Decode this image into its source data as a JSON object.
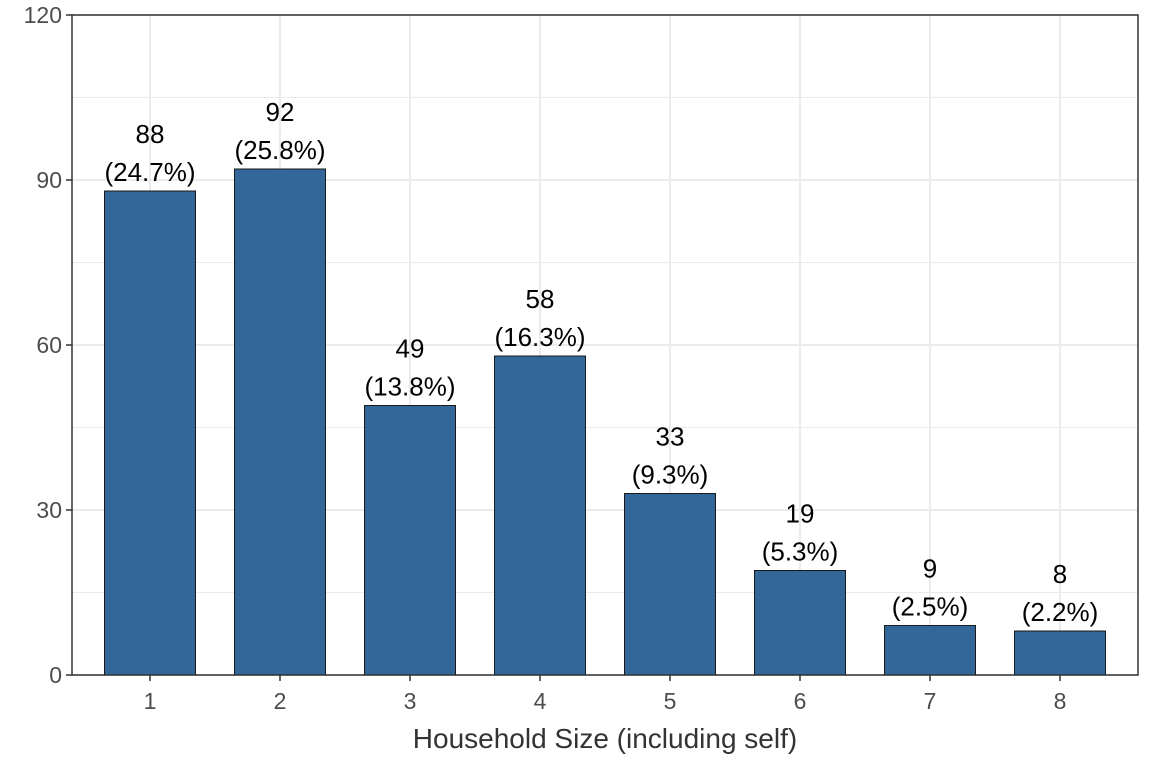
{
  "chart_data": {
    "type": "bar",
    "categories": [
      "1",
      "2",
      "3",
      "4",
      "5",
      "6",
      "7",
      "8"
    ],
    "values": [
      88,
      92,
      49,
      58,
      33,
      19,
      9,
      8
    ],
    "percent_labels": [
      "(24.7%)",
      "(25.8%)",
      "(13.8%)",
      "(16.3%)",
      "(9.3%)",
      "(5.3%)",
      "(2.5%)",
      "(2.2%)"
    ],
    "title": "",
    "xlabel": "Household Size (including self)",
    "ylabel": "",
    "ylim": [
      0,
      120
    ],
    "yticks": [
      "0",
      "30",
      "60",
      "90",
      "120"
    ],
    "grid": true,
    "bar_color": "#336699",
    "bar_border_color": "#1a1a1a",
    "grid_color": "#ebebeb",
    "axis_color": "#333333"
  }
}
